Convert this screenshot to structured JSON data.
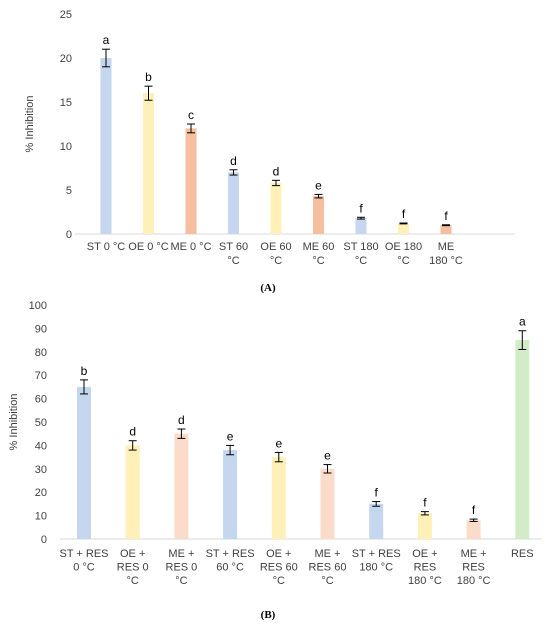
{
  "chart_data": [
    {
      "type": "bar",
      "panel_label": "(A)",
      "ylabel": "% Inhibition",
      "ylim": [
        0,
        25
      ],
      "yticks": [
        0,
        5,
        10,
        15,
        20,
        25
      ],
      "grid": false,
      "categories": [
        [
          "ST 0 °C"
        ],
        [
          "OE 0 °C"
        ],
        [
          "ME 0 °C"
        ],
        [
          "ST 60",
          "°C"
        ],
        [
          "OE 60",
          "°C"
        ],
        [
          "ME 60",
          "°C"
        ],
        [
          "ST 180",
          "°C"
        ],
        [
          "OE 180",
          "°C"
        ],
        [
          "ME",
          "180 °C"
        ]
      ],
      "values": [
        20.0,
        16.0,
        12.0,
        7.0,
        5.8,
        4.3,
        1.8,
        1.2,
        1.0
      ],
      "errors": [
        1.0,
        0.8,
        0.5,
        0.3,
        0.3,
        0.2,
        0.1,
        0.05,
        0.05
      ],
      "letters": [
        "a",
        "b",
        "c",
        "d",
        "d",
        "e",
        "f",
        "f",
        "f"
      ],
      "colors": [
        "#c5d6ef",
        "#fff0b8",
        "#f5be9f",
        "#c5d6ef",
        "#fff0b8",
        "#f5be9f",
        "#c5d6ef",
        "#fff0b8",
        "#f5be9f"
      ]
    },
    {
      "type": "bar",
      "panel_label": "(B)",
      "ylabel": "% Inhibition",
      "ylim": [
        0,
        100
      ],
      "yticks": [
        0,
        10,
        20,
        30,
        40,
        50,
        60,
        70,
        80,
        90,
        100
      ],
      "grid": false,
      "categories": [
        [
          "ST + RES",
          "0 °C"
        ],
        [
          "OE +",
          "RES  0",
          "°C"
        ],
        [
          "ME +",
          "RES  0",
          "°C"
        ],
        [
          "ST + RES",
          "60 °C"
        ],
        [
          "OE +",
          "RES  60",
          "°C"
        ],
        [
          "ME +",
          "RES  60",
          "°C"
        ],
        [
          "ST + RES",
          "180 °C"
        ],
        [
          "OE +",
          "RES",
          "180 °C"
        ],
        [
          "ME +",
          "RES",
          "180 °C"
        ],
        [
          "RES"
        ]
      ],
      "values": [
        65,
        40,
        45,
        38,
        35,
        30,
        15,
        11,
        8,
        85
      ],
      "errors": [
        3,
        2,
        2,
        2,
        2,
        1.8,
        1,
        0.7,
        0.5,
        4
      ],
      "letters": [
        "b",
        "d",
        "d",
        "e",
        "e",
        "e",
        "f",
        "f",
        "f",
        "a"
      ],
      "colors": [
        "#c5d6ef",
        "#fff0b8",
        "#fbdccb",
        "#c5d6ef",
        "#fff0b8",
        "#fbdccb",
        "#c5d6ef",
        "#fff0b8",
        "#fbdccb",
        "#d2ecc8"
      ]
    }
  ]
}
